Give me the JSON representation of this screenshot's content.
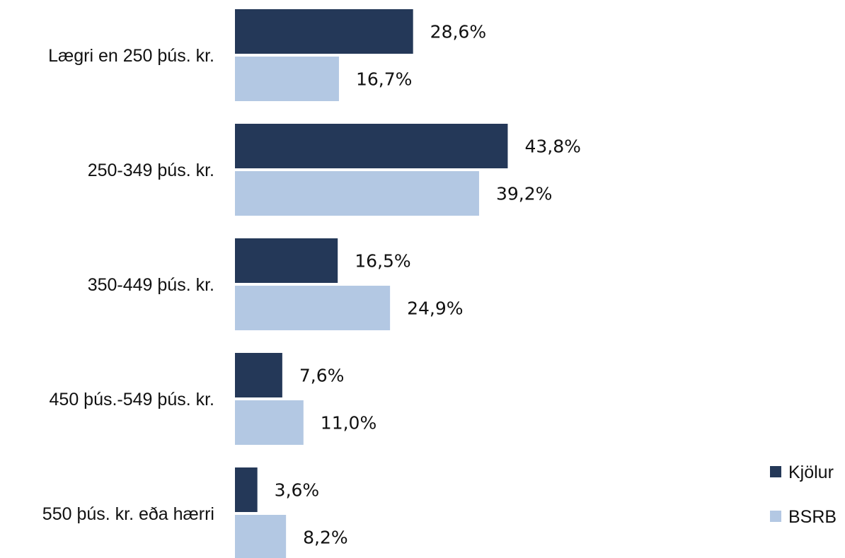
{
  "chart_data": {
    "type": "bar",
    "orientation": "horizontal",
    "categories": [
      "Lægri en 250 þús. kr.",
      "250-349 þús. kr.",
      "350-449 þús. kr.",
      "450 þús.-549 þús. kr.",
      "550 þús. kr. eða hærri"
    ],
    "series": [
      {
        "name": "Kjölur",
        "color": "#243858",
        "values": [
          28.6,
          43.8,
          16.5,
          7.6,
          3.6
        ],
        "labels": [
          "28,6%",
          "43,8%",
          "16,5%",
          "7,6%",
          "3,6%"
        ]
      },
      {
        "name": "BSRB",
        "color": "#b3c8e3",
        "values": [
          16.7,
          39.2,
          24.9,
          11.0,
          8.2
        ],
        "labels": [
          "16,7%",
          "39,2%",
          "24,9%",
          "11,0%",
          "8,2%"
        ]
      }
    ],
    "value_unit": "%",
    "xlim": [
      0,
      50
    ],
    "grid": false,
    "legend_position": "bottom-right"
  }
}
